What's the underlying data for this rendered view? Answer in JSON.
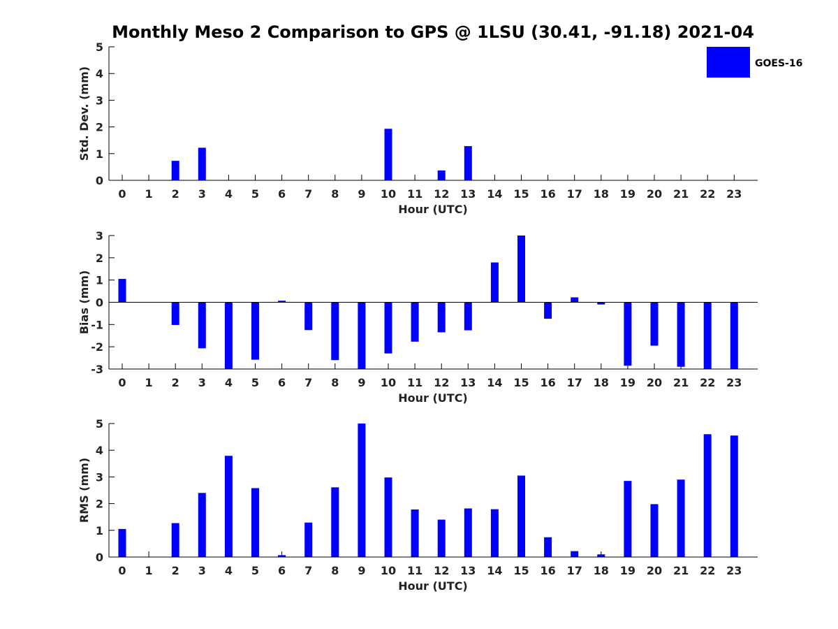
{
  "title": "Monthly Meso 2 Comparison to GPS @ 1LSU (30.41, -91.18) 2021-04",
  "legend": {
    "label": "GOES-16",
    "color": "#0000ff",
    "placement": "top-right"
  },
  "bar_color": "#0000ff",
  "chart_data": [
    {
      "type": "bar",
      "id": "std",
      "xlabel": "Hour (UTC)",
      "ylabel": "Std. Dev. (mm)",
      "ylim": [
        0,
        5
      ],
      "yticks": [
        0,
        1,
        2,
        3,
        4,
        5
      ],
      "categories": [
        "0",
        "1",
        "2",
        "3",
        "4",
        "5",
        "6",
        "7",
        "8",
        "9",
        "10",
        "11",
        "12",
        "13",
        "14",
        "15",
        "16",
        "17",
        "18",
        "19",
        "20",
        "21",
        "22",
        "23"
      ],
      "series": [
        {
          "name": "GOES-16",
          "values": [
            0,
            0,
            0.73,
            1.22,
            0,
            0,
            0,
            0,
            0,
            0,
            1.93,
            0,
            0.37,
            1.28,
            0,
            0,
            0,
            0,
            0,
            0,
            0,
            0,
            0,
            0
          ]
        }
      ]
    },
    {
      "type": "bar",
      "id": "bias",
      "xlabel": "Hour (UTC)",
      "ylabel": "Bias (mm)",
      "ylim": [
        -3,
        3
      ],
      "yticks": [
        -3,
        -2,
        -1,
        0,
        1,
        2,
        3
      ],
      "categories": [
        "0",
        "1",
        "2",
        "3",
        "4",
        "5",
        "6",
        "7",
        "8",
        "9",
        "10",
        "11",
        "12",
        "13",
        "14",
        "15",
        "16",
        "17",
        "18",
        "19",
        "20",
        "21",
        "22",
        "23"
      ],
      "series": [
        {
          "name": "GOES-16",
          "values": [
            1.05,
            0,
            -1.02,
            -2.07,
            -3.0,
            -2.58,
            0.07,
            -1.25,
            -2.6,
            -3.0,
            -2.3,
            -1.77,
            -1.35,
            -1.26,
            1.79,
            3.0,
            -0.74,
            0.22,
            -0.1,
            -2.85,
            -1.95,
            -2.9,
            -3.0,
            -3.0
          ]
        }
      ]
    },
    {
      "type": "bar",
      "id": "rms",
      "xlabel": "Hour (UTC)",
      "ylabel": "RMS (mm)",
      "ylim": [
        0,
        5
      ],
      "yticks": [
        0,
        1,
        2,
        3,
        4,
        5
      ],
      "categories": [
        "0",
        "1",
        "2",
        "3",
        "4",
        "5",
        "6",
        "7",
        "8",
        "9",
        "10",
        "11",
        "12",
        "13",
        "14",
        "15",
        "16",
        "17",
        "18",
        "19",
        "20",
        "21",
        "22",
        "23"
      ],
      "series": [
        {
          "name": "GOES-16",
          "values": [
            1.05,
            0,
            1.27,
            2.4,
            3.79,
            2.58,
            0.07,
            1.29,
            2.61,
            5.0,
            2.98,
            1.78,
            1.4,
            1.82,
            1.79,
            3.05,
            0.74,
            0.22,
            0.1,
            2.85,
            1.98,
            2.9,
            4.6,
            4.55
          ]
        }
      ]
    }
  ]
}
